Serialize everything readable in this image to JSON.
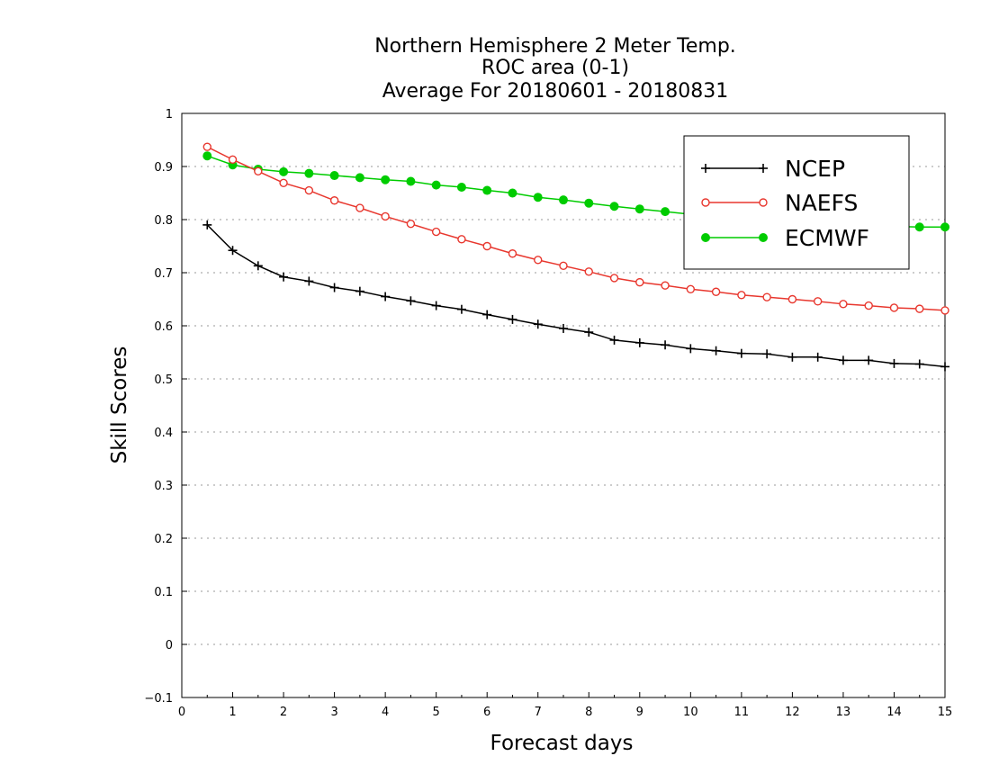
{
  "chart_data": {
    "type": "line",
    "title_lines": [
      "Northern Hemisphere 2 Meter Temp.",
      "ROC area (0-1)",
      "Average For 20180601 - 20180831"
    ],
    "xlabel": "Forecast days",
    "ylabel": "Skill Scores",
    "xlim": [
      0,
      15
    ],
    "ylim": [
      -0.1,
      1
    ],
    "x_ticks": [
      0,
      1,
      2,
      3,
      4,
      5,
      6,
      7,
      8,
      9,
      10,
      11,
      12,
      13,
      14,
      15
    ],
    "y_ticks": [
      -0.1,
      0,
      0.1,
      0.2,
      0.3,
      0.4,
      0.5,
      0.6,
      0.7,
      0.8,
      0.9,
      1
    ],
    "x_tick_labels": [
      "0",
      "1",
      "2",
      "3",
      "4",
      "5",
      "6",
      "7",
      "8",
      "9",
      "10",
      "11",
      "12",
      "13",
      "14",
      "15"
    ],
    "y_tick_labels": [
      "−0.1",
      "0",
      "0.1",
      "0.2",
      "0.3",
      "0.4",
      "0.5",
      "0.6",
      "0.7",
      "0.8",
      "0.9",
      "1"
    ],
    "grid": true,
    "legend_position": "top-right",
    "x": [
      0.5,
      1,
      1.5,
      2,
      2.5,
      3,
      3.5,
      4,
      4.5,
      5,
      5.5,
      6,
      6.5,
      7,
      7.5,
      8,
      8.5,
      9,
      9.5,
      10,
      10.5,
      11,
      11.5,
      12,
      12.5,
      13,
      13.5,
      14,
      14.5,
      15
    ],
    "series": [
      {
        "name": "NCEP",
        "color": "#000000",
        "marker": "plus",
        "values": [
          0.79,
          0.742,
          0.713,
          0.692,
          0.684,
          0.672,
          0.665,
          0.655,
          0.647,
          0.638,
          0.631,
          0.621,
          0.612,
          0.603,
          0.595,
          0.588,
          0.573,
          0.568,
          0.564,
          0.557,
          0.553,
          0.548,
          0.547,
          0.541,
          0.541,
          0.535,
          0.535,
          0.529,
          0.528,
          0.523
        ]
      },
      {
        "name": "NAEFS",
        "color": "#e8372e",
        "marker": "open-circle",
        "values": [
          0.937,
          0.913,
          0.891,
          0.869,
          0.855,
          0.836,
          0.822,
          0.806,
          0.792,
          0.777,
          0.763,
          0.75,
          0.736,
          0.724,
          0.713,
          0.702,
          0.69,
          0.682,
          0.676,
          0.669,
          0.664,
          0.658,
          0.654,
          0.65,
          0.646,
          0.641,
          0.638,
          0.634,
          0.632,
          0.629
        ]
      },
      {
        "name": "ECMWF",
        "color": "#00cc00",
        "marker": "filled-circle",
        "values": [
          0.92,
          0.903,
          0.895,
          0.89,
          0.887,
          0.883,
          0.879,
          0.875,
          0.872,
          0.865,
          0.861,
          0.855,
          0.85,
          0.842,
          0.837,
          0.831,
          0.825,
          0.82,
          0.815,
          0.81,
          0.806,
          0.802,
          0.8,
          0.797,
          0.794,
          0.791,
          0.789,
          0.787,
          0.786,
          0.786
        ]
      }
    ]
  }
}
